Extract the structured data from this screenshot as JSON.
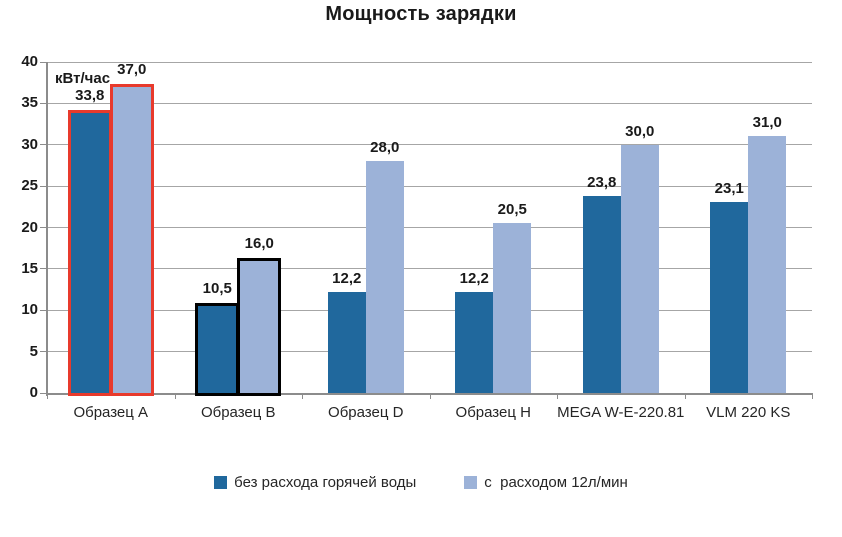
{
  "title": "Мощность зарядки",
  "y_axis_unit": "кВт/час",
  "chart_data": {
    "type": "bar",
    "title": "Мощность зарядки",
    "ylabel": "кВт/час",
    "xlabel": "",
    "categories": [
      "Образец A",
      "Образец B",
      "Образец D",
      "Образец H",
      "MEGA W-E-220.81",
      "VLM 220 KS"
    ],
    "series": [
      {
        "name": "без расхода горячей воды",
        "color": "#20689d",
        "values": [
          33.8,
          10.5,
          12.2,
          12.2,
          23.8,
          23.1
        ],
        "labels": [
          "33,8",
          "10,5",
          "12,2",
          "12,2",
          "23,8",
          "23,1"
        ]
      },
      {
        "name": "с  расходом 12л/мин",
        "color": "#9cb2d8",
        "values": [
          37.0,
          16.0,
          28.0,
          20.5,
          30.0,
          31.0
        ],
        "labels": [
          "37,0",
          "16,0",
          "28,0",
          "20,5",
          "30,0",
          "31,0"
        ]
      }
    ],
    "group_outlines": [
      {
        "category_index": 0,
        "color": "#e83a2c"
      },
      {
        "category_index": 1,
        "color": "#000000"
      }
    ],
    "ylim": [
      0,
      40
    ],
    "ytick_step": 5,
    "ytick_labels": [
      "0",
      "5",
      "10",
      "15",
      "20",
      "25",
      "30",
      "35",
      "40"
    ],
    "grid": true,
    "gridline_color": "#a6a6a6",
    "axis_color": "#8c8c8c",
    "legend_position": "bottom"
  }
}
